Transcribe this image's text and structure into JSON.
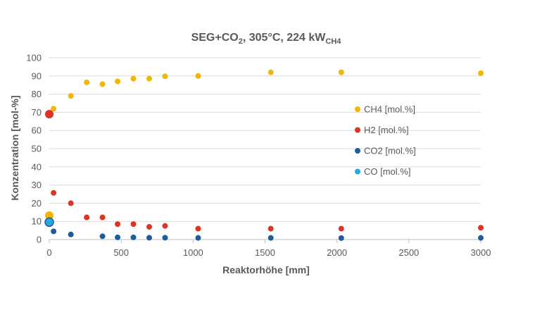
{
  "chart_data": {
    "type": "scatter",
    "title": {
      "part1": "SEG+CO",
      "sub1": "2",
      "part2": ", 305°C, 224 kW",
      "sub2": "CH4"
    },
    "xlabel": "Reaktorhöhe [mm]",
    "ylabel": "Konzentration [mol-%]",
    "xlim": [
      0,
      3000
    ],
    "ylim": [
      0,
      100
    ],
    "xticks": [
      0,
      500,
      1000,
      1500,
      2000,
      2500,
      3000
    ],
    "yticks": [
      0,
      10,
      20,
      30,
      40,
      50,
      60,
      70,
      80,
      90,
      100
    ],
    "grid": true,
    "legend_position": "right",
    "series": [
      {
        "name": "CH4 [mol.%]",
        "color": "#F2B705",
        "points": [
          {
            "x": 0,
            "y": 13.2,
            "big": true
          },
          {
            "x": 30,
            "y": 72
          },
          {
            "x": 150,
            "y": 79
          },
          {
            "x": 260,
            "y": 86.5
          },
          {
            "x": 370,
            "y": 85.5
          },
          {
            "x": 475,
            "y": 87
          },
          {
            "x": 585,
            "y": 88.5
          },
          {
            "x": 695,
            "y": 88.5
          },
          {
            "x": 805,
            "y": 89.8
          },
          {
            "x": 1035,
            "y": 90
          },
          {
            "x": 1540,
            "y": 92
          },
          {
            "x": 2030,
            "y": 92
          },
          {
            "x": 3000,
            "y": 91.5
          }
        ]
      },
      {
        "name": "H2 [mol.%]",
        "color": "#E03222",
        "points": [
          {
            "x": 0,
            "y": 69,
            "big": true
          },
          {
            "x": 30,
            "y": 25.7
          },
          {
            "x": 150,
            "y": 20
          },
          {
            "x": 260,
            "y": 12.2
          },
          {
            "x": 370,
            "y": 12.2
          },
          {
            "x": 475,
            "y": 8.5
          },
          {
            "x": 585,
            "y": 8.5
          },
          {
            "x": 695,
            "y": 7
          },
          {
            "x": 805,
            "y": 7.5
          },
          {
            "x": 1035,
            "y": 6
          },
          {
            "x": 1540,
            "y": 6
          },
          {
            "x": 2030,
            "y": 6
          },
          {
            "x": 3000,
            "y": 6.5
          }
        ]
      },
      {
        "name": "CO2 [mol.%]",
        "color": "#1F5C99",
        "points": [
          {
            "x": 0,
            "y": 9.3,
            "big": true
          },
          {
            "x": 30,
            "y": 4.5
          },
          {
            "x": 150,
            "y": 2.8
          },
          {
            "x": 370,
            "y": 1.8
          },
          {
            "x": 475,
            "y": 1.2
          },
          {
            "x": 585,
            "y": 1.2
          },
          {
            "x": 695,
            "y": 1.0
          },
          {
            "x": 805,
            "y": 1.0
          },
          {
            "x": 1035,
            "y": 0.9
          },
          {
            "x": 1540,
            "y": 0.9
          },
          {
            "x": 2030,
            "y": 0.8
          },
          {
            "x": 3000,
            "y": 0.9
          }
        ]
      },
      {
        "name": "CO [mol.%]",
        "color": "#29A8E0",
        "points": [
          {
            "x": 0,
            "y": 9.6,
            "big": true
          }
        ]
      }
    ]
  }
}
